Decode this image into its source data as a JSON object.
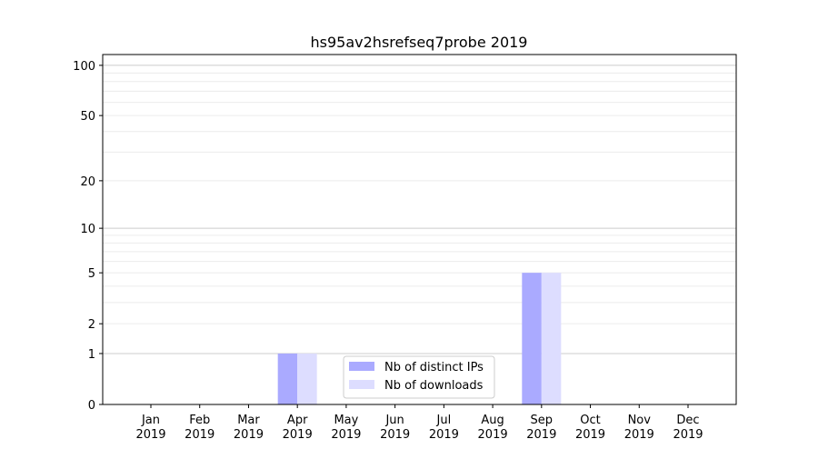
{
  "chart_data": {
    "type": "bar",
    "title": "hs95av2hsrefseq7probe 2019",
    "xlabel": "",
    "ylabel": "",
    "yscale": "symlog (log10(1+y))",
    "ylim": [
      0,
      116
    ],
    "yticks": [
      0,
      1,
      2,
      5,
      10,
      20,
      50,
      100
    ],
    "grid": "horizontal, major at 1/10/100, minor at 2-9, 20-90",
    "categories": [
      "Jan\n2019",
      "Feb\n2019",
      "Mar\n2019",
      "Apr\n2019",
      "May\n2019",
      "Jun\n2019",
      "Jul\n2019",
      "Aug\n2019",
      "Sep\n2019",
      "Oct\n2019",
      "Nov\n2019",
      "Dec\n2019"
    ],
    "series": [
      {
        "name": "Nb of distinct IPs",
        "color": "#aaaaff",
        "values": [
          0,
          0,
          0,
          1,
          0,
          0,
          0,
          0,
          5,
          0,
          0,
          0
        ]
      },
      {
        "name": "Nb of downloads",
        "color": "#ddddff",
        "values": [
          0,
          0,
          0,
          1,
          0,
          0,
          0,
          0,
          5,
          0,
          0,
          0
        ]
      }
    ],
    "legend": "bottom-center"
  }
}
